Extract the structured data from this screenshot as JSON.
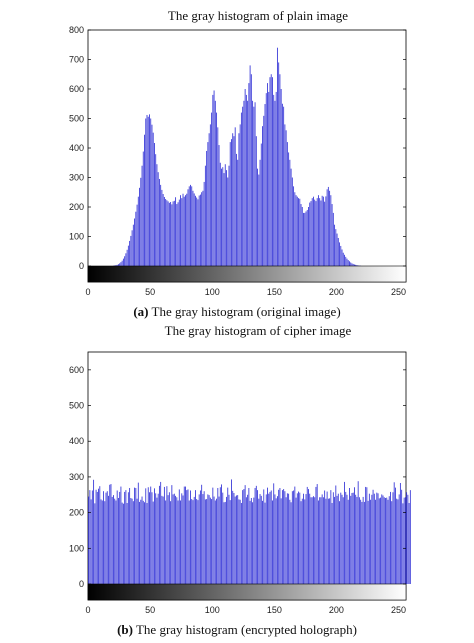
{
  "chart_data": [
    {
      "type": "bar",
      "title": "The gray histogram of plain image",
      "caption_label": "(a)",
      "caption_text": "The gray histogram (original image)",
      "xlim": [
        0,
        256
      ],
      "ylim": [
        0,
        800
      ],
      "xticks": [
        "0",
        "50",
        "100",
        "150",
        "200",
        "250"
      ],
      "yticks": [
        "0",
        "100",
        "200",
        "300",
        "400",
        "500",
        "600",
        "700",
        "800"
      ],
      "bar_color": "#3b3bd8",
      "grayscale_colorbar": true,
      "values": [
        0,
        0,
        0,
        0,
        0,
        0,
        0,
        0,
        0,
        0,
        0,
        0,
        0,
        0,
        0,
        0,
        0,
        0,
        0,
        0,
        1,
        2,
        3,
        4,
        6,
        9,
        13,
        18,
        25,
        33,
        43,
        55,
        69,
        85,
        102,
        121,
        140,
        161,
        184,
        208,
        235,
        265,
        299,
        340,
        388,
        445,
        500,
        512,
        506,
        514,
        500,
        479,
        452,
        417,
        379,
        345,
        318,
        295,
        275,
        258,
        244,
        234,
        227,
        223,
        219,
        214,
        217,
        209,
        219,
        221,
        233,
        210,
        216,
        225,
        240,
        230,
        245,
        235,
        240,
        245,
        260,
        270,
        275,
        270,
        255,
        246,
        238,
        232,
        226,
        239,
        242,
        250,
        255,
        285,
        340,
        390,
        420,
        450,
        480,
        520,
        580,
        595,
        560,
        520,
        470,
        410,
        350,
        330,
        335,
        315,
        345,
        325,
        300,
        340,
        420,
        430,
        450,
        440,
        470,
        380,
        360,
        450,
        480,
        520,
        540,
        560,
        600,
        580,
        560,
        620,
        680,
        650,
        560,
        540,
        555,
        440,
        330,
        310,
        360,
        415,
        474,
        509,
        549,
        586,
        620,
        590,
        640,
        650,
        640,
        580,
        560,
        590,
        740,
        690,
        650,
        600,
        550,
        540,
        480,
        460,
        420,
        385,
        360,
        330,
        300,
        270,
        250,
        240,
        235,
        230,
        228,
        210,
        200,
        180,
        180,
        185,
        190,
        200,
        215,
        220,
        230,
        235,
        225,
        220,
        230,
        240,
        230,
        222,
        238,
        235,
        218,
        236,
        260,
        268,
        255,
        240,
        210,
        180,
        140,
        125,
        110,
        95,
        80,
        68,
        56,
        45,
        38,
        31,
        25,
        20,
        16,
        12,
        9,
        7,
        5,
        4,
        3,
        2,
        1,
        1,
        0,
        0,
        0,
        0,
        0,
        0,
        0,
        0,
        0,
        0,
        0,
        0,
        0,
        0,
        0,
        0,
        0,
        0,
        0,
        0,
        0,
        0,
        0,
        0,
        0,
        0,
        0,
        0,
        0,
        0,
        0
      ]
    },
    {
      "type": "bar",
      "title": "The gray histogram of cipher image",
      "caption_label": "(b)",
      "caption_text": "The gray histogram (encrypted holograph)",
      "xlim": [
        0,
        256
      ],
      "ylim": [
        0,
        650
      ],
      "xticks": [
        "0",
        "50",
        "100",
        "150",
        "200",
        "250"
      ],
      "yticks": [
        "0",
        "100",
        "200",
        "300",
        "400",
        "500",
        "600"
      ],
      "bar_color": "#3b3bd8",
      "grayscale_colorbar": true,
      "values": [
        245,
        263,
        237,
        262,
        292,
        226,
        264,
        258,
        267,
        274,
        237,
        234,
        260,
        232,
        256,
        260,
        247,
        278,
        280,
        244,
        249,
        239,
        234,
        262,
        241,
        258,
        273,
        228,
        225,
        258,
        263,
        227,
        257,
        269,
        241,
        239,
        232,
        270,
        269,
        239,
        284,
        230,
        236,
        245,
        233,
        229,
        268,
        227,
        271,
        257,
        273,
        257,
        231,
        268,
        254,
        242,
        253,
        275,
        286,
        247,
        245,
        272,
        234,
        274,
        249,
        257,
        232,
        277,
        251,
        253,
        247,
        243,
        234,
        265,
        234,
        254,
        248,
        273,
        273,
        263,
        265,
        234,
        262,
        238,
        235,
        244,
        263,
        238,
        235,
        251,
        262,
        278,
        252,
        260,
        237,
        238,
        251,
        249,
        242,
        238,
        270,
        245,
        234,
        239,
        269,
        245,
        271,
        279,
        256,
        229,
        230,
        244,
        270,
        250,
        235,
        293,
        261,
        255,
        245,
        248,
        249,
        237,
        236,
        227,
        263,
        266,
        277,
        243,
        250,
        269,
        233,
        241,
        229,
        242,
        269,
        275,
        263,
        239,
        252,
        247,
        233,
        265,
        228,
        251,
        270,
        253,
        258,
        262,
        234,
        282,
        251,
        240,
        246,
        264,
        269,
        240,
        263,
        266,
        260,
        243,
        254,
        253,
        236,
        229,
        260,
        262,
        273,
        242,
        254,
        259,
        256,
        232,
        239,
        253,
        237,
        252,
        272,
        266,
        253,
        243,
        243,
        246,
        243,
        272,
        280,
        234,
        243,
        243,
        251,
        243,
        262,
        239,
        259,
        239,
        240,
        263,
        227,
        257,
        244,
        276,
        247,
        253,
        232,
        256,
        250,
        243,
        286,
        258,
        250,
        236,
        269,
        247,
        255,
        256,
        271,
        250,
        244,
        288,
        243,
        236,
        230,
        244,
        230,
        272,
        271,
        233,
        253,
        236,
        250,
        264,
        253,
        236,
        256,
        254,
        240,
        242,
        251,
        248,
        243,
        241,
        242,
        236,
        246,
        258,
        232,
        257,
        285,
        270,
        239,
        237,
        251,
        283,
        264,
        226,
        242,
        243,
        257,
        250,
        227,
        263
      ]
    }
  ]
}
